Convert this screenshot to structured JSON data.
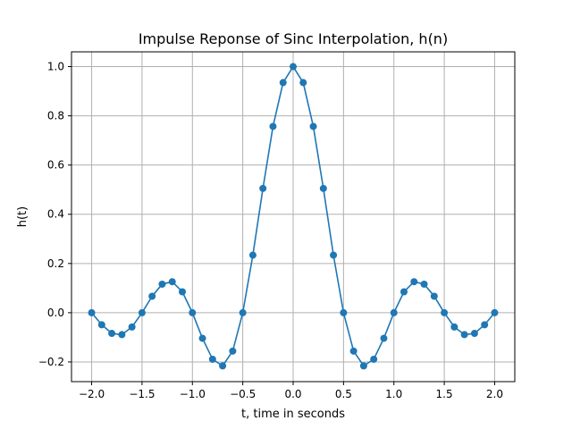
{
  "chart_data": {
    "type": "line",
    "title": "Impulse Reponse of Sinc Interpolation, h(n)",
    "xlabel": "t, time in seconds",
    "ylabel": "h(t)",
    "xlim": [
      -2.2,
      2.2
    ],
    "ylim": [
      -0.28,
      1.06
    ],
    "xticks": [
      -2.0,
      -1.5,
      -1.0,
      -0.5,
      0.0,
      0.5,
      1.0,
      1.5,
      2.0
    ],
    "xtick_labels": [
      "−2.0",
      "−1.5",
      "−1.0",
      "−0.5",
      "0.0",
      "0.5",
      "1.0",
      "1.5",
      "2.0"
    ],
    "yticks": [
      -0.2,
      0.0,
      0.2,
      0.4,
      0.6,
      0.8,
      1.0
    ],
    "ytick_labels": [
      "−0.2",
      "0.0",
      "0.2",
      "0.4",
      "0.6",
      "0.8",
      "1.0"
    ],
    "grid": true,
    "series": [
      {
        "color": "#1f77b4",
        "marker": "circle",
        "x": [
          -2.0,
          -1.9,
          -1.8,
          -1.7,
          -1.6,
          -1.5,
          -1.4,
          -1.3,
          -1.2,
          -1.1,
          -1.0,
          -0.9,
          -0.8,
          -0.7,
          -0.6,
          -0.5,
          -0.4,
          -0.3,
          -0.2,
          -0.1,
          0.0,
          0.1,
          0.2,
          0.3,
          0.4,
          0.5,
          0.6,
          0.7,
          0.8,
          0.9,
          1.0,
          1.1,
          1.2,
          1.3,
          1.4,
          1.5,
          1.6,
          1.7,
          1.8,
          1.9,
          2.0
        ],
        "y": [
          0.0,
          -0.049,
          -0.084,
          -0.089,
          -0.058,
          0.0,
          0.067,
          0.116,
          0.126,
          0.085,
          0.0,
          -0.104,
          -0.189,
          -0.216,
          -0.156,
          0.0,
          0.234,
          0.505,
          0.757,
          0.935,
          1.0,
          0.935,
          0.757,
          0.505,
          0.234,
          0.0,
          -0.156,
          -0.216,
          -0.189,
          -0.104,
          0.0,
          0.085,
          0.126,
          0.116,
          0.067,
          0.0,
          -0.058,
          -0.089,
          -0.084,
          -0.049,
          0.0
        ]
      }
    ]
  }
}
